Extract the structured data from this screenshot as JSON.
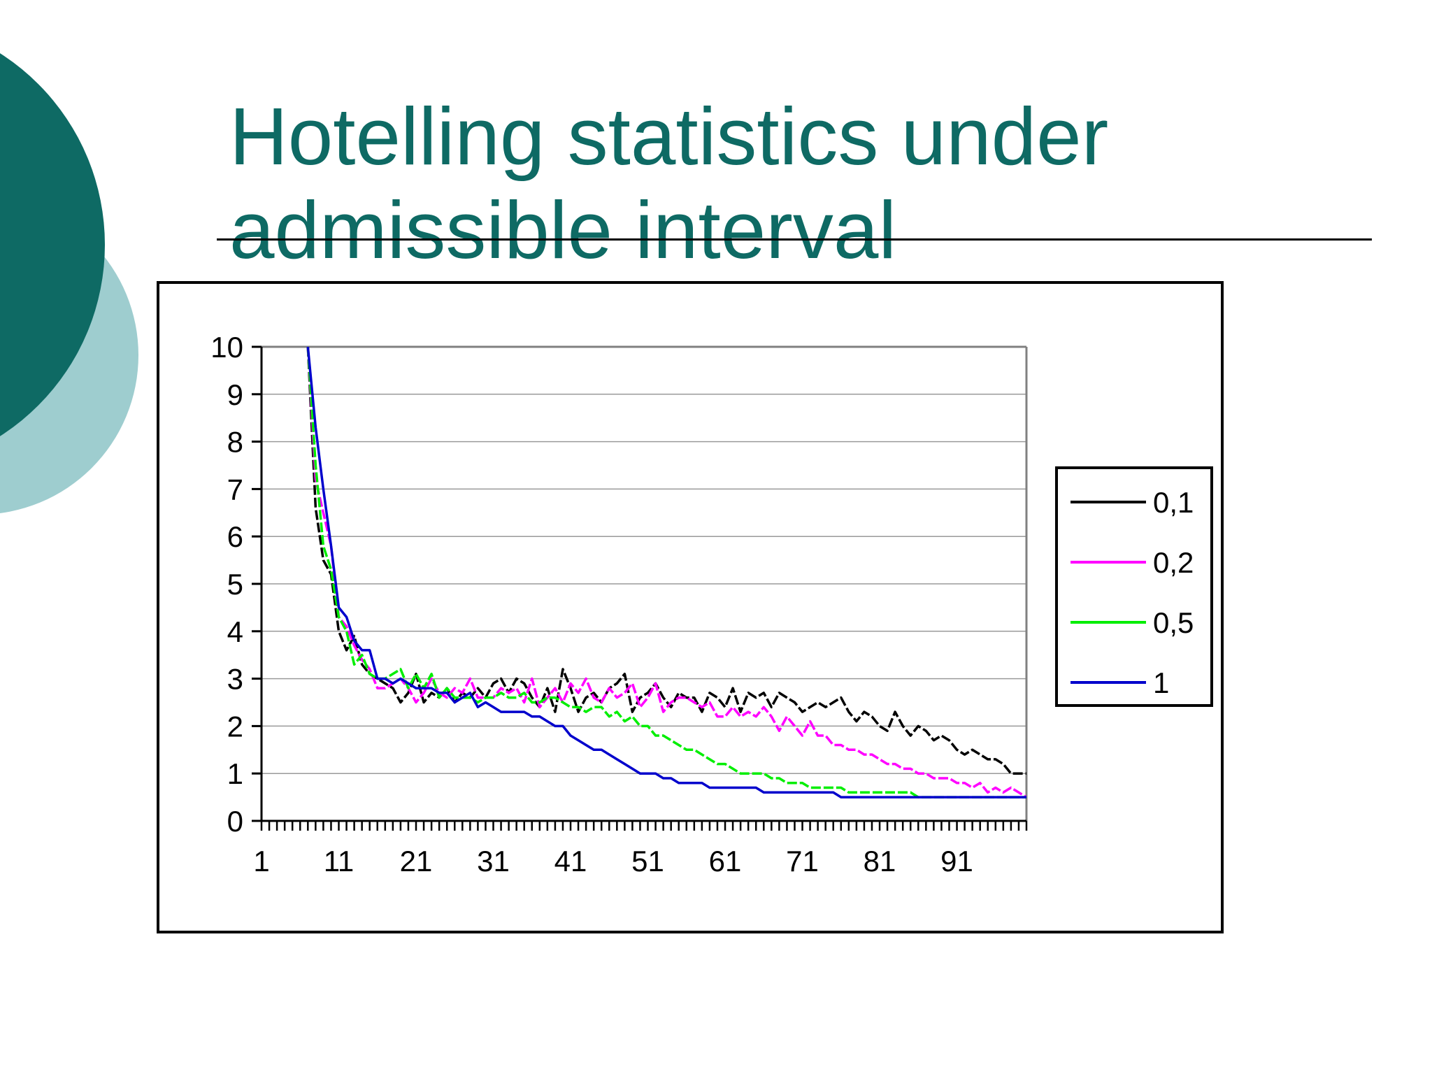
{
  "slide": {
    "title_line1": "Hotelling statistics under",
    "title_line2": "admissible interval"
  },
  "colors": {
    "accent_dark": "#0e6a64",
    "accent_light": "#9ecdcf"
  },
  "chart_data": {
    "type": "line",
    "title": "",
    "xlabel": "",
    "ylabel": "",
    "ylim": [
      0,
      10
    ],
    "xlim": [
      1,
      100
    ],
    "yticks": [
      "0",
      "1",
      "2",
      "3",
      "4",
      "5",
      "6",
      "7",
      "8",
      "9",
      "10"
    ],
    "xtick_labels": [
      "1",
      "11",
      "21",
      "31",
      "41",
      "51",
      "61",
      "71",
      "81",
      "91"
    ],
    "grid": true,
    "legend_position": "right",
    "series": [
      {
        "name": "0,1",
        "color": "#000000",
        "dashed": true,
        "x": [
          7,
          8,
          9,
          10,
          11,
          12,
          13,
          14,
          15,
          16,
          17,
          18,
          19,
          20,
          21,
          22,
          23,
          24,
          25,
          26,
          27,
          28,
          29,
          30,
          31,
          32,
          33,
          34,
          35,
          36,
          37,
          38,
          39,
          40,
          41,
          42,
          43,
          44,
          45,
          46,
          47,
          48,
          49,
          50,
          51,
          52,
          53,
          54,
          55,
          56,
          57,
          58,
          59,
          60,
          61,
          62,
          63,
          64,
          65,
          66,
          67,
          68,
          69,
          70,
          71,
          72,
          73,
          74,
          75,
          76,
          77,
          78,
          79,
          80,
          81,
          82,
          83,
          84,
          85,
          86,
          87,
          88,
          89,
          90,
          91,
          92,
          93,
          94,
          95,
          96,
          97,
          98,
          99,
          100
        ],
        "y": [
          10,
          6.6,
          5.5,
          5.2,
          4.0,
          3.6,
          3.9,
          3.3,
          3.1,
          3.0,
          2.9,
          2.8,
          2.5,
          2.7,
          3.1,
          2.5,
          2.7,
          2.6,
          2.8,
          2.5,
          2.7,
          2.6,
          2.8,
          2.6,
          2.9,
          3.0,
          2.7,
          3.0,
          2.9,
          2.6,
          2.4,
          2.8,
          2.3,
          3.2,
          2.8,
          2.3,
          2.6,
          2.7,
          2.5,
          2.8,
          2.9,
          3.1,
          2.3,
          2.6,
          2.7,
          2.9,
          2.6,
          2.4,
          2.7,
          2.6,
          2.6,
          2.3,
          2.7,
          2.6,
          2.4,
          2.8,
          2.3,
          2.7,
          2.6,
          2.7,
          2.4,
          2.7,
          2.6,
          2.5,
          2.3,
          2.4,
          2.5,
          2.4,
          2.5,
          2.6,
          2.3,
          2.1,
          2.3,
          2.2,
          2.0,
          1.9,
          2.3,
          2.0,
          1.8,
          2.0,
          1.9,
          1.7,
          1.8,
          1.7,
          1.5,
          1.4,
          1.5,
          1.4,
          1.3,
          1.3,
          1.2,
          1.0,
          1.0,
          1.0
        ]
      },
      {
        "name": "0,2",
        "color": "#ff00ff",
        "dashed": true,
        "x": [
          7,
          8,
          9,
          10,
          11,
          12,
          13,
          14,
          15,
          16,
          17,
          18,
          19,
          20,
          21,
          22,
          23,
          24,
          25,
          26,
          27,
          28,
          29,
          30,
          31,
          32,
          33,
          34,
          35,
          36,
          37,
          38,
          39,
          40,
          41,
          42,
          43,
          44,
          45,
          46,
          47,
          48,
          49,
          50,
          51,
          52,
          53,
          54,
          55,
          56,
          57,
          58,
          59,
          60,
          61,
          62,
          63,
          64,
          65,
          66,
          67,
          68,
          69,
          70,
          71,
          72,
          73,
          74,
          75,
          76,
          77,
          78,
          79,
          80,
          81,
          82,
          83,
          84,
          85,
          86,
          87,
          88,
          89,
          90,
          91,
          92,
          93,
          94,
          95,
          96,
          97,
          98,
          99,
          100
        ],
        "y": [
          10,
          7.2,
          6.5,
          5.8,
          4.3,
          4.1,
          3.7,
          3.4,
          3.2,
          2.8,
          2.8,
          2.9,
          3.0,
          2.8,
          2.5,
          2.7,
          3.0,
          2.7,
          2.6,
          2.8,
          2.7,
          3.0,
          2.6,
          2.6,
          2.6,
          2.8,
          2.7,
          2.8,
          2.5,
          3.0,
          2.4,
          2.6,
          2.8,
          2.5,
          2.9,
          2.7,
          3.0,
          2.6,
          2.5,
          2.8,
          2.6,
          2.7,
          2.9,
          2.4,
          2.6,
          2.9,
          2.3,
          2.5,
          2.6,
          2.6,
          2.5,
          2.4,
          2.5,
          2.2,
          2.2,
          2.4,
          2.2,
          2.3,
          2.2,
          2.4,
          2.2,
          1.9,
          2.2,
          2.0,
          1.8,
          2.1,
          1.8,
          1.8,
          1.6,
          1.6,
          1.5,
          1.5,
          1.4,
          1.4,
          1.3,
          1.2,
          1.2,
          1.1,
          1.1,
          1.0,
          1.0,
          0.9,
          0.9,
          0.9,
          0.8,
          0.8,
          0.7,
          0.8,
          0.6,
          0.7,
          0.6,
          0.7,
          0.6,
          0.5
        ]
      },
      {
        "name": "0,5",
        "color": "#00ee00",
        "dashed": true,
        "x": [
          7,
          8,
          9,
          10,
          11,
          12,
          13,
          14,
          15,
          16,
          17,
          18,
          19,
          20,
          21,
          22,
          23,
          24,
          25,
          26,
          27,
          28,
          29,
          30,
          31,
          32,
          33,
          34,
          35,
          36,
          37,
          38,
          39,
          40,
          41,
          42,
          43,
          44,
          45,
          46,
          47,
          48,
          49,
          50,
          51,
          52,
          53,
          54,
          55,
          56,
          57,
          58,
          59,
          60,
          61,
          62,
          63,
          64,
          65,
          66,
          67,
          68,
          69,
          70,
          71,
          72,
          73,
          74,
          75,
          76,
          77,
          78,
          79,
          80,
          81,
          82,
          83,
          84,
          85,
          86,
          87,
          88,
          89,
          90,
          91,
          92,
          93,
          94,
          95,
          96,
          97,
          98,
          99,
          100
        ],
        "y": [
          10,
          7.5,
          5.8,
          5.3,
          4.3,
          4.0,
          3.3,
          3.5,
          3.1,
          3.0,
          3.0,
          3.1,
          3.2,
          2.8,
          3.1,
          2.8,
          3.1,
          2.6,
          2.8,
          2.6,
          2.6,
          2.6,
          2.5,
          2.6,
          2.6,
          2.7,
          2.6,
          2.6,
          2.7,
          2.5,
          2.5,
          2.6,
          2.6,
          2.5,
          2.4,
          2.4,
          2.3,
          2.4,
          2.4,
          2.2,
          2.3,
          2.1,
          2.2,
          2.0,
          2.0,
          1.8,
          1.8,
          1.7,
          1.6,
          1.5,
          1.5,
          1.4,
          1.3,
          1.2,
          1.2,
          1.1,
          1.0,
          1.0,
          1.0,
          1.0,
          0.9,
          0.9,
          0.8,
          0.8,
          0.8,
          0.7,
          0.7,
          0.7,
          0.7,
          0.7,
          0.6,
          0.6,
          0.6,
          0.6,
          0.6,
          0.6,
          0.6,
          0.6,
          0.6,
          0.5,
          0.5,
          0.5,
          0.5,
          0.5,
          0.5,
          0.5,
          0.5,
          0.5,
          0.5,
          0.5,
          0.5,
          0.5,
          0.5,
          0.5
        ]
      },
      {
        "name": "1",
        "color": "#0000cc",
        "dashed": false,
        "x": [
          7,
          8,
          9,
          10,
          11,
          12,
          13,
          14,
          15,
          16,
          17,
          18,
          19,
          20,
          21,
          22,
          23,
          24,
          25,
          26,
          27,
          28,
          29,
          30,
          31,
          32,
          33,
          34,
          35,
          36,
          37,
          38,
          39,
          40,
          41,
          42,
          43,
          44,
          45,
          46,
          47,
          48,
          49,
          50,
          51,
          52,
          53,
          54,
          55,
          56,
          57,
          58,
          59,
          60,
          61,
          62,
          63,
          64,
          65,
          66,
          67,
          68,
          69,
          70,
          71,
          72,
          73,
          74,
          75,
          76,
          77,
          78,
          79,
          80,
          81,
          82,
          83,
          84,
          85,
          86,
          87,
          88,
          89,
          90,
          91,
          92,
          93,
          94,
          95,
          96,
          97,
          98,
          99,
          100
        ],
        "y": [
          10,
          8.3,
          7.0,
          5.8,
          4.5,
          4.3,
          3.8,
          3.6,
          3.6,
          3.0,
          3.0,
          2.9,
          3.0,
          2.9,
          2.8,
          2.8,
          2.8,
          2.7,
          2.7,
          2.5,
          2.6,
          2.7,
          2.4,
          2.5,
          2.4,
          2.3,
          2.3,
          2.3,
          2.3,
          2.2,
          2.2,
          2.1,
          2.0,
          2.0,
          1.8,
          1.7,
          1.6,
          1.5,
          1.5,
          1.4,
          1.3,
          1.2,
          1.1,
          1.0,
          1.0,
          1.0,
          0.9,
          0.9,
          0.8,
          0.8,
          0.8,
          0.8,
          0.7,
          0.7,
          0.7,
          0.7,
          0.7,
          0.7,
          0.7,
          0.6,
          0.6,
          0.6,
          0.6,
          0.6,
          0.6,
          0.6,
          0.6,
          0.6,
          0.6,
          0.5,
          0.5,
          0.5,
          0.5,
          0.5,
          0.5,
          0.5,
          0.5,
          0.5,
          0.5,
          0.5,
          0.5,
          0.5,
          0.5,
          0.5,
          0.5,
          0.5,
          0.5,
          0.5,
          0.5,
          0.5,
          0.5,
          0.5,
          0.5,
          0.5
        ]
      }
    ]
  }
}
